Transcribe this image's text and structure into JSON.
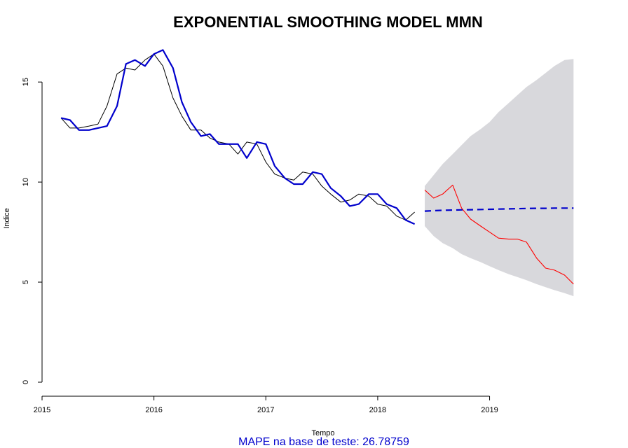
{
  "chart_data": {
    "type": "line",
    "title": "EXPONENTIAL SMOOTHING MODEL MMN",
    "xlabel": "Tempo",
    "ylabel": "Indice",
    "xlim": [
      2015.0,
      2019.93
    ],
    "ylim": [
      -0.7,
      17.0
    ],
    "x_ticks": [
      2015,
      2016,
      2017,
      2018,
      2019
    ],
    "y_ticks": [
      0,
      5,
      10,
      15
    ],
    "grid": false,
    "legend": "none",
    "colors": {
      "actual": "#000000",
      "fitted": "#0000cc",
      "test": "#ff0000",
      "forecast": "#0000cc",
      "band": "#d8d8dc"
    },
    "series": [
      {
        "key": "actual",
        "x": [
          2015.17,
          2015.25,
          2015.33,
          2015.42,
          2015.5,
          2015.58,
          2015.67,
          2015.75,
          2015.83,
          2015.92,
          2016.0,
          2016.08,
          2016.17,
          2016.25,
          2016.33,
          2016.42,
          2016.5,
          2016.58,
          2016.67,
          2016.75,
          2016.83,
          2016.92,
          2017.0,
          2017.08,
          2017.17,
          2017.25,
          2017.33,
          2017.42,
          2017.5,
          2017.58,
          2017.67,
          2017.75,
          2017.83,
          2017.92,
          2018.0,
          2018.08,
          2018.17,
          2018.25,
          2018.33
        ],
        "y": [
          13.2,
          12.7,
          12.7,
          12.8,
          12.9,
          13.8,
          15.4,
          15.7,
          15.6,
          16.1,
          16.4,
          15.8,
          14.2,
          13.3,
          12.6,
          12.6,
          12.2,
          12.0,
          11.9,
          11.4,
          12.0,
          11.9,
          11.0,
          10.4,
          10.2,
          10.1,
          10.5,
          10.4,
          9.8,
          9.4,
          9.0,
          9.1,
          9.4,
          9.3,
          8.9,
          8.8,
          8.3,
          8.1,
          8.5
        ]
      },
      {
        "key": "fitted",
        "x": [
          2015.17,
          2015.25,
          2015.33,
          2015.42,
          2015.5,
          2015.58,
          2015.67,
          2015.75,
          2015.83,
          2015.92,
          2016.0,
          2016.08,
          2016.17,
          2016.25,
          2016.33,
          2016.42,
          2016.5,
          2016.58,
          2016.67,
          2016.75,
          2016.83,
          2016.92,
          2017.0,
          2017.08,
          2017.17,
          2017.25,
          2017.33,
          2017.42,
          2017.5,
          2017.58,
          2017.67,
          2017.75,
          2017.83,
          2017.92,
          2018.0,
          2018.08,
          2018.17,
          2018.25,
          2018.33
        ],
        "y": [
          13.2,
          13.1,
          12.6,
          12.6,
          12.7,
          12.8,
          13.8,
          15.9,
          16.1,
          15.8,
          16.4,
          16.6,
          15.7,
          14.0,
          13.0,
          12.3,
          12.4,
          11.9,
          11.9,
          11.9,
          11.2,
          12.0,
          11.9,
          10.8,
          10.2,
          9.9,
          9.9,
          10.5,
          10.4,
          9.7,
          9.3,
          8.8,
          8.9,
          9.4,
          9.4,
          8.9,
          8.7,
          8.1,
          7.9
        ]
      },
      {
        "key": "test",
        "x": [
          2018.42,
          2018.5,
          2018.58,
          2018.67,
          2018.75,
          2018.83,
          2018.92,
          2019.0,
          2019.08,
          2019.17,
          2019.25,
          2019.33,
          2019.42,
          2019.5,
          2019.58,
          2019.67,
          2019.75
        ],
        "y": [
          9.6,
          9.2,
          9.4,
          9.85,
          8.7,
          8.15,
          7.8,
          7.5,
          7.2,
          7.15,
          7.15,
          7.0,
          6.2,
          5.7,
          5.6,
          5.35,
          4.9
        ]
      }
    ],
    "forecast": {
      "key": "forecast",
      "x": [
        2018.42,
        2018.5,
        2018.58,
        2018.67,
        2018.75,
        2018.83,
        2018.92,
        2019.0,
        2019.08,
        2019.17,
        2019.25,
        2019.33,
        2019.42,
        2019.5,
        2019.58,
        2019.67,
        2019.75
      ],
      "y": [
        8.55,
        8.57,
        8.59,
        8.6,
        8.61,
        8.62,
        8.63,
        8.64,
        8.65,
        8.66,
        8.67,
        8.68,
        8.69,
        8.69,
        8.7,
        8.7,
        8.7
      ]
    },
    "interval": {
      "x": [
        2018.42,
        2018.5,
        2018.58,
        2018.67,
        2018.75,
        2018.83,
        2018.92,
        2019.0,
        2019.08,
        2019.17,
        2019.25,
        2019.33,
        2019.42,
        2019.5,
        2019.58,
        2019.67,
        2019.75
      ],
      "lower": [
        7.8,
        7.3,
        6.95,
        6.7,
        6.4,
        6.2,
        6.0,
        5.8,
        5.6,
        5.4,
        5.25,
        5.1,
        4.9,
        4.75,
        4.6,
        4.45,
        4.3
      ],
      "upper": [
        9.8,
        10.35,
        10.9,
        11.4,
        11.85,
        12.3,
        12.65,
        13.0,
        13.5,
        13.95,
        14.35,
        14.75,
        15.1,
        15.45,
        15.8,
        16.1,
        16.15
      ]
    }
  },
  "note": {
    "label": "MAPE na base de teste: ",
    "value": "26.78759",
    "color": "#0000cc"
  }
}
